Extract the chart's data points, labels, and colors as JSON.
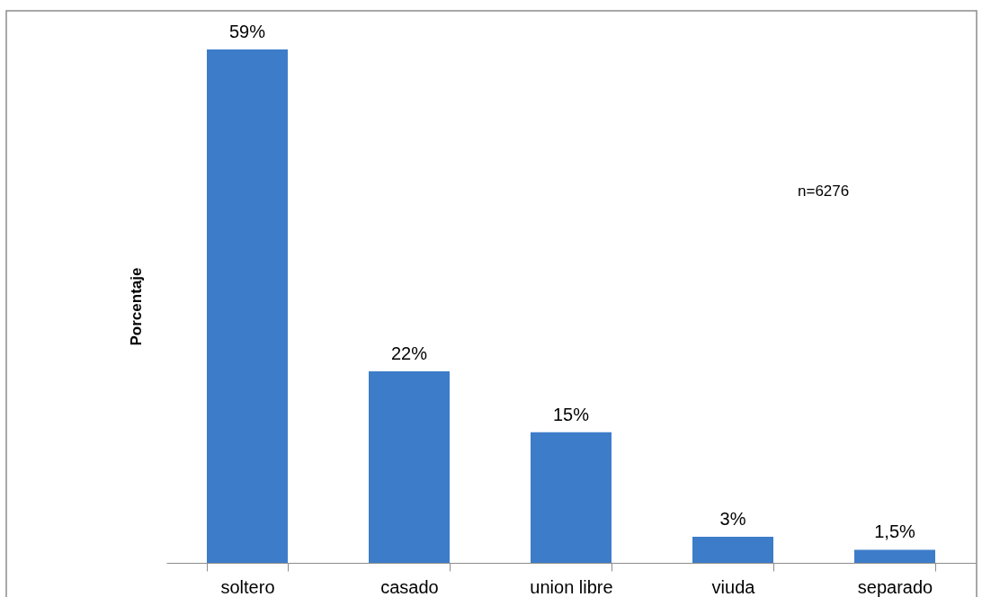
{
  "chart_data": {
    "type": "bar",
    "ylabel": "Porcentaje",
    "categories": [
      "soltero",
      "casado",
      "union libre",
      "viuda",
      "separado"
    ],
    "values": [
      59,
      22,
      15,
      3,
      1.5
    ],
    "value_labels": [
      "59%",
      "22%",
      "15%",
      "3%",
      "1,5%"
    ],
    "color": "#3d7cc9",
    "tick_labels": "x",
    "annotations": [
      "n=6276"
    ]
  }
}
